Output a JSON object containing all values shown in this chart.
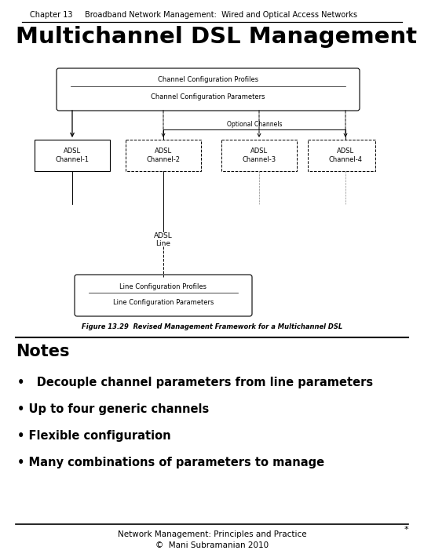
{
  "header_chapter": "Chapter 13",
  "header_title": "Broadband Network Management:  Wired and Optical Access Networks",
  "slide_title": "Multichannel DSL Management",
  "notes_title": "Notes",
  "bullets": [
    "•   Decouple channel parameters from line parameters",
    "• Up to four generic channels",
    "• Flexible configuration",
    "• Many combinations of parameters to manage"
  ],
  "footer_line1": "Network Management: Principles and Practice",
  "footer_line2": "©  Mani Subramanian 2010",
  "fig_caption": "Figure 13.29  Revised Management Framework for a Multichannel DSL",
  "bg_color": "#ffffff",
  "text_color": "#000000",
  "box_top_label1": "Channel Configuration Profiles",
  "box_top_label2": "Channel Configuration Parameters",
  "channels": [
    "ADSL\nChannel-1",
    "ADSL\nChannel-2",
    "ADSL\nChannel-3",
    "ADSL\nChannel-4"
  ],
  "optional_label": "Optional Channels",
  "adsl_line_label": "ADSL\nLine",
  "box_bot_label1": "Line Configuration Profiles",
  "box_bot_label2": "Line Configuration Parameters"
}
